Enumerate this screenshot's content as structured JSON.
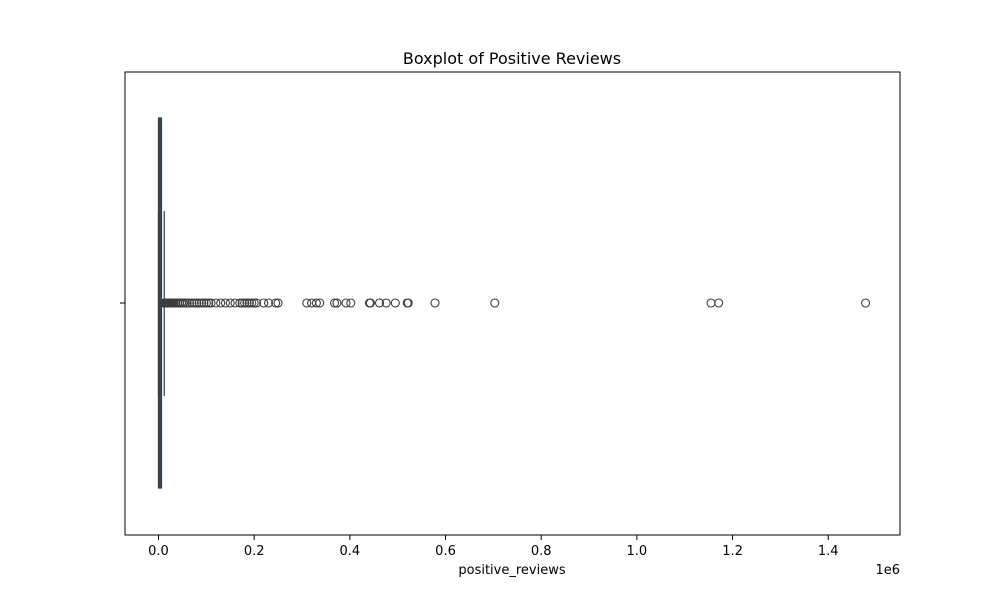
{
  "chart_data": {
    "type": "boxplot",
    "title": "Boxplot of Positive Reviews",
    "xlabel": "positive_reviews",
    "ylabel": "",
    "x_offset_label": "1e6",
    "xlim": [
      -70000,
      1550000
    ],
    "x_ticks": [
      0,
      200000,
      400000,
      600000,
      800000,
      1000000,
      1200000,
      1400000
    ],
    "x_tick_labels": [
      "0.0",
      "0.2",
      "0.4",
      "0.6",
      "0.8",
      "1.0",
      "1.2",
      "1.4"
    ],
    "grid": false,
    "box": {
      "q1": 0,
      "median": 1000,
      "q3": 5000,
      "whisker_low": 0,
      "whisker_high": 12000
    },
    "outliers": [
      12500,
      13000,
      13500,
      14000,
      15000,
      16000,
      17000,
      18000,
      19000,
      20000,
      22000,
      24000,
      26000,
      28000,
      30000,
      33000,
      36000,
      40000,
      44000,
      48000,
      52000,
      56000,
      60000,
      65000,
      70000,
      75000,
      80000,
      85000,
      90000,
      95000,
      100000,
      105000,
      110000,
      120000,
      130000,
      140000,
      150000,
      160000,
      170000,
      175000,
      180000,
      185000,
      190000,
      195000,
      200000,
      205000,
      220000,
      230000,
      245000,
      250000,
      310000,
      320000,
      330000,
      337000,
      368000,
      373000,
      392000,
      402000,
      441000,
      443000,
      462000,
      476000,
      495000,
      520000,
      522000,
      578000,
      703000,
      1155000,
      1171000,
      1478000
    ]
  },
  "colors": {
    "box_face": "#3a4a5c",
    "box_edge": "#3b3b3b",
    "axis": "#000000",
    "background": "#ffffff"
  }
}
